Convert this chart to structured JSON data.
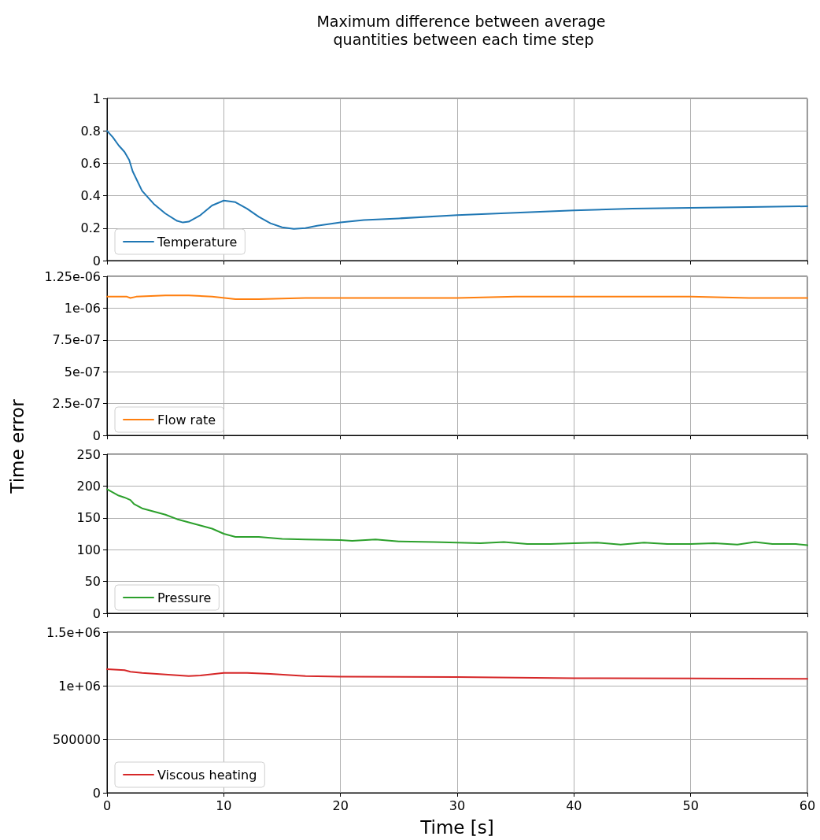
{
  "chart_data": [
    {
      "type": "line",
      "title": "Maximum difference between average\n quantities between each time step",
      "xlim": [
        0,
        60
      ],
      "xticks": [
        0,
        10,
        20,
        30,
        40,
        50,
        60
      ],
      "ylim": [
        0,
        1
      ],
      "yticks": [
        0,
        0.2,
        0.4,
        0.6,
        0.8,
        1
      ],
      "grid": true,
      "legend": "bottom left",
      "marker": "none",
      "tick_labels": "y",
      "series": [
        {
          "name": "Temperature",
          "color": "#1f77b4",
          "x": [
            0,
            0.5,
            1,
            1.5,
            1.9,
            2.2,
            3,
            4,
            5,
            6,
            6.5,
            7,
            8,
            9,
            10,
            11,
            12,
            13,
            14,
            15,
            16,
            17,
            18,
            20,
            22,
            25,
            30,
            35,
            40,
            45,
            50,
            55,
            60
          ],
          "values": [
            0.8,
            0.76,
            0.71,
            0.67,
            0.62,
            0.55,
            0.43,
            0.35,
            0.29,
            0.245,
            0.235,
            0.24,
            0.28,
            0.34,
            0.37,
            0.36,
            0.32,
            0.27,
            0.23,
            0.205,
            0.195,
            0.2,
            0.215,
            0.235,
            0.25,
            0.26,
            0.28,
            0.295,
            0.31,
            0.32,
            0.325,
            0.33,
            0.335
          ]
        }
      ]
    },
    {
      "type": "line",
      "xlim": [
        0,
        60
      ],
      "xticks": [
        0,
        10,
        20,
        30,
        40,
        50,
        60
      ],
      "ylim": [
        0,
        1.25e-06
      ],
      "yticks": [
        0,
        {
          "value": 2.5e-07,
          "label": "2.5e-07"
        },
        {
          "value": 5e-07,
          "label": "5e-07"
        },
        {
          "value": 7.5e-07,
          "label": "7.5e-07"
        },
        {
          "value": 1e-06,
          "label": "1e-06"
        },
        {
          "value": 1.25e-06,
          "label": "1.25e-06"
        }
      ],
      "grid": true,
      "legend": "bottom left",
      "marker": "none",
      "tick_labels": "y",
      "series": [
        {
          "name": "Flow rate",
          "color": "#ff7f0e",
          "x": [
            0,
            1.7,
            2,
            2.5,
            5,
            7,
            9,
            11,
            13,
            17,
            25,
            30,
            35,
            40,
            46,
            50,
            55,
            60
          ],
          "values": [
            1.09e-06,
            1.09e-06,
            1.08e-06,
            1.09e-06,
            1.1e-06,
            1.1e-06,
            1.09e-06,
            1.07e-06,
            1.07e-06,
            1.08e-06,
            1.08e-06,
            1.08e-06,
            1.09e-06,
            1.09e-06,
            1.09e-06,
            1.09e-06,
            1.08e-06,
            1.08e-06
          ]
        }
      ]
    },
    {
      "type": "line",
      "ylabel": "Time error",
      "xlim": [
        0,
        60
      ],
      "xticks": [
        0,
        10,
        20,
        30,
        40,
        50,
        60
      ],
      "ylim": [
        0,
        250
      ],
      "yticks": [
        0,
        50,
        100,
        150,
        200,
        250
      ],
      "grid": true,
      "legend": "bottom left",
      "marker": "none",
      "tick_labels": "y",
      "series": [
        {
          "name": "Pressure",
          "color": "#2ca02c",
          "x": [
            0,
            1,
            1.5,
            2,
            2.3,
            3,
            4,
            5,
            6,
            7,
            8,
            9,
            10,
            11,
            13,
            15,
            17,
            20,
            21,
            23,
            25,
            28,
            30,
            32,
            34,
            36,
            38,
            40,
            42,
            44,
            46,
            48,
            50,
            52,
            54,
            55.5,
            57,
            59,
            60
          ],
          "values": [
            195,
            185,
            182,
            178,
            172,
            165,
            160,
            155,
            148,
            143,
            138,
            133,
            125,
            120,
            120,
            117,
            116,
            115,
            114,
            116,
            113,
            112,
            111,
            110,
            112,
            109,
            109,
            110,
            111,
            108,
            111,
            109,
            109,
            110,
            108,
            112,
            109,
            109,
            107
          ]
        }
      ]
    },
    {
      "type": "line",
      "xlabel": "Time [s]",
      "xlim": [
        0,
        60
      ],
      "xticks": [
        0,
        10,
        20,
        30,
        40,
        50,
        60
      ],
      "ylim": [
        0,
        1500000
      ],
      "yticks": [
        0,
        500000,
        {
          "value": 1000000,
          "label": "1e+06"
        },
        {
          "value": 1500000,
          "label": "1.5e+06"
        }
      ],
      "grid": true,
      "legend": "bottom left",
      "marker": "none",
      "series": [
        {
          "name": "Viscous heating",
          "color": "#d62728",
          "x": [
            0,
            1.5,
            2,
            3,
            5,
            7,
            8,
            10,
            12,
            14,
            17,
            20,
            30,
            40,
            50,
            60
          ],
          "values": [
            1155000,
            1145000,
            1130000,
            1120000,
            1105000,
            1090000,
            1095000,
            1120000,
            1120000,
            1110000,
            1090000,
            1085000,
            1080000,
            1070000,
            1068000,
            1065000
          ]
        }
      ]
    }
  ]
}
